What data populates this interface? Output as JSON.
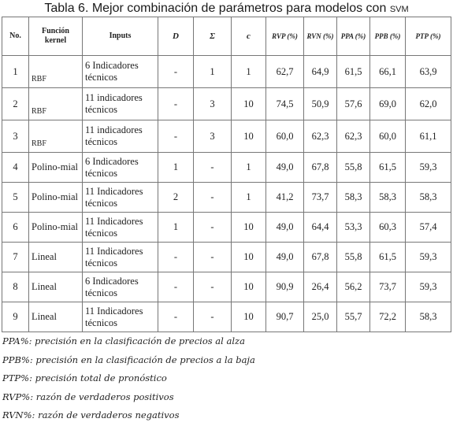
{
  "title_main": "Tabla 6. Mejor combinación de parámetros para modelos con",
  "title_sc": "SVM",
  "headers": [
    "No.",
    "Función kernel",
    "Inputs",
    "D",
    "Σ",
    "c",
    "RVP (%)",
    "RVN (%)",
    "PPA (%)",
    "PPB (%)",
    "PTP (%)"
  ],
  "rows": [
    [
      "1",
      "RBF",
      "6 Indicadores técnicos",
      "-",
      "1",
      "1",
      "62,7",
      "64,9",
      "61,5",
      "66,1",
      "63,9"
    ],
    [
      "2",
      "RBF",
      "11 indicadores técnicos",
      "-",
      "3",
      "10",
      "74,5",
      "50,9",
      "57,6",
      "69,0",
      "62,0"
    ],
    [
      "3",
      "RBF",
      "11 indicadores técnicos",
      "-",
      "3",
      "10",
      "60,0",
      "62,3",
      "62,3",
      "60,0",
      "61,1"
    ],
    [
      "4",
      "Polino-mial",
      "6 Indicadores técnicos",
      "1",
      "-",
      "1",
      "49,0",
      "67,8",
      "55,8",
      "61,5",
      "59,3"
    ],
    [
      "5",
      "Polino-mial",
      "11 Indicadores técnicos",
      "2",
      "-",
      "1",
      "41,2",
      "73,7",
      "58,3",
      "58,3",
      "58,3"
    ],
    [
      "6",
      "Polino-mial",
      "11 Indicadores técnicos",
      "1",
      "-",
      "10",
      "49,0",
      "64,4",
      "53,3",
      "60,3",
      "57,4"
    ],
    [
      "7",
      "Lineal",
      "11 Indicadores técnicos",
      "-",
      "-",
      "10",
      "49,0",
      "67,8",
      "55,8",
      "61,5",
      "59,3"
    ],
    [
      "8",
      "Lineal",
      "6 Indicadores técnicos",
      "-",
      "-",
      "10",
      "90,9",
      "26,4",
      "56,2",
      "73,7",
      "59,3"
    ],
    [
      "9",
      "Lineal",
      "11 Indicadores técnicos",
      "-",
      "-",
      "10",
      "90,7",
      "25,0",
      "55,7",
      "72,2",
      "58,3"
    ]
  ],
  "definitions": [
    "PPA%: precisión en la clasificación de precios al alza",
    "PPB%: precisión en la clasificación de precios a la baja",
    "PTP%: precisión total de pronóstico",
    "RVP%: razón de verdaderos positivos",
    "RVN%: razón de verdaderos negativos"
  ]
}
